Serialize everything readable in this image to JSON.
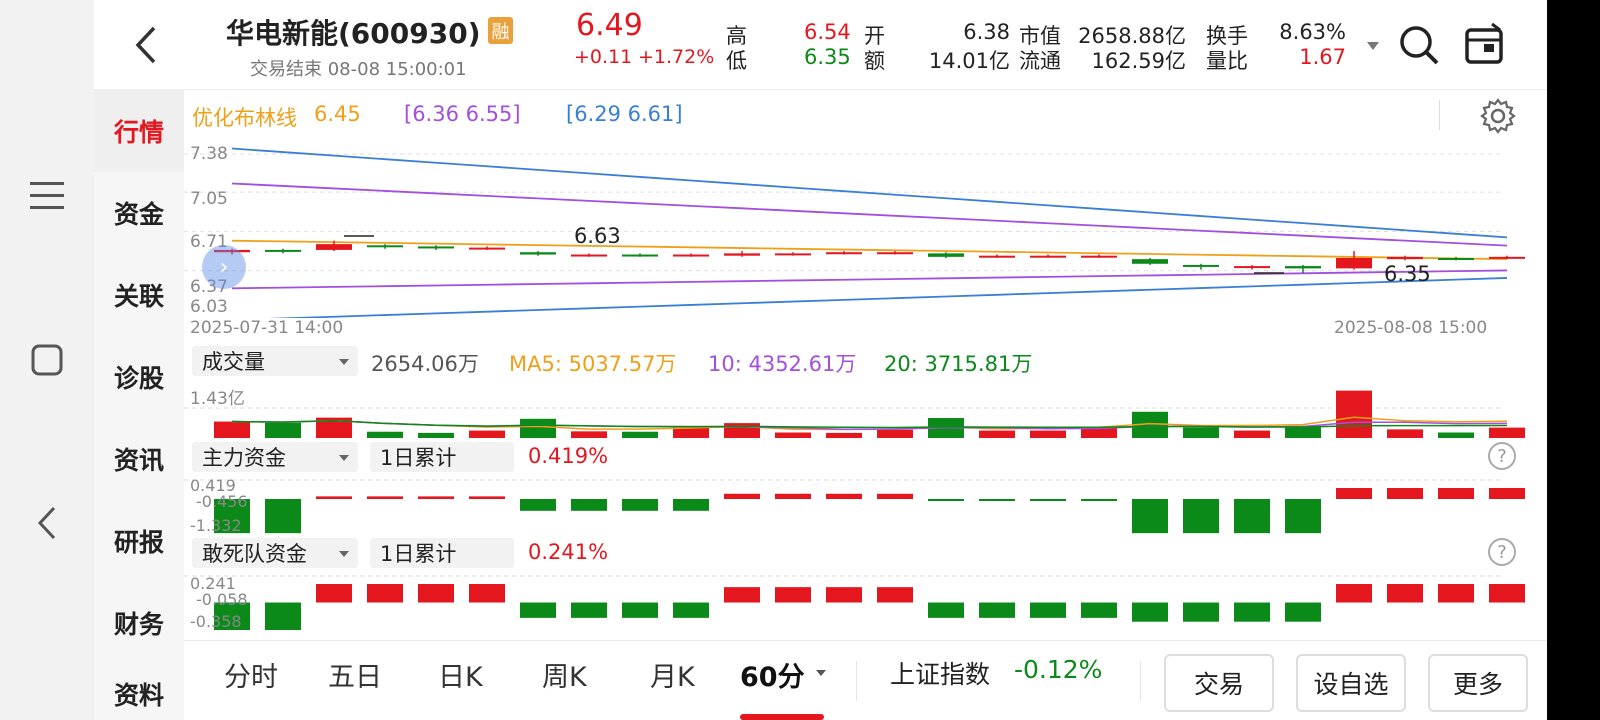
{
  "header": {
    "title": "华电新能(600930)",
    "rong_badge": "融",
    "status": "交易结束 08-08 15:00:01",
    "price": "6.49",
    "change": "+0.11",
    "change_pct": "+1.72%",
    "high_label": "高",
    "high": "6.54",
    "low_label": "低",
    "low": "6.35",
    "open_label": "开",
    "open": "6.38",
    "amount_label": "额",
    "amount": "14.01亿",
    "mktcap_label": "市值",
    "mktcap": "2658.88亿",
    "float_label": "流通",
    "float": "162.59亿",
    "turnover_label": "换手",
    "turnover": "8.63%",
    "volratio_label": "量比",
    "volratio": "1.67"
  },
  "tabs": [
    "行情",
    "资金",
    "关联",
    "诊股",
    "资讯",
    "研报",
    "财务",
    "资料"
  ],
  "chart": {
    "boll_label": "优化布林线",
    "boll_mid": "6.45",
    "boll_band1": "[6.36  6.55]",
    "boll_band2": "[6.29  6.61]",
    "y_ticks": [
      "7.38",
      "7.05",
      "6.71",
      "6.37",
      "6.03"
    ],
    "start_time": "2025-07-31 14:00",
    "end_time": "2025-08-08 15:00",
    "high_mark": "6.63",
    "low_mark": "6.35",
    "volume_selector": "成交量",
    "volume_value": "2654.06万",
    "ma5": "MA5: 5037.57万",
    "ma10": "10: 4352.61万",
    "ma20": "20: 3715.81万",
    "vol_max": "1.43亿",
    "main_selector": "主力资金",
    "main_period": "1日累计",
    "main_value": "0.419%",
    "main_ticks": [
      "0.419",
      "-0.456",
      "-1.332"
    ],
    "dare_selector": "敢死队资金",
    "dare_period": "1日累计",
    "dare_value": "0.241%",
    "dare_ticks": [
      "0.241",
      "-0.058",
      "-0.358"
    ],
    "help_icon": "?"
  },
  "chart_data": {
    "type": "candlestick",
    "x_range": [
      "2025-07-31 14:00",
      "2025-08-08 15:00"
    ],
    "candles": [
      {
        "o": 6.53,
        "c": 6.55,
        "h": 6.56,
        "l": 6.51
      },
      {
        "o": 6.55,
        "c": 6.54,
        "h": 6.56,
        "l": 6.52
      },
      {
        "o": 6.55,
        "c": 6.6,
        "h": 6.63,
        "l": 6.54
      },
      {
        "o": 6.59,
        "c": 6.58,
        "h": 6.6,
        "l": 6.56
      },
      {
        "o": 6.58,
        "c": 6.57,
        "h": 6.59,
        "l": 6.55
      },
      {
        "o": 6.56,
        "c": 6.57,
        "h": 6.58,
        "l": 6.55
      },
      {
        "o": 6.53,
        "c": 6.51,
        "h": 6.54,
        "l": 6.5
      },
      {
        "o": 6.5,
        "c": 6.51,
        "h": 6.52,
        "l": 6.49
      },
      {
        "o": 6.51,
        "c": 6.5,
        "h": 6.52,
        "l": 6.49
      },
      {
        "o": 6.5,
        "c": 6.51,
        "h": 6.52,
        "l": 6.49
      },
      {
        "o": 6.5,
        "c": 6.52,
        "h": 6.54,
        "l": 6.49
      },
      {
        "o": 6.51,
        "c": 6.52,
        "h": 6.53,
        "l": 6.5
      },
      {
        "o": 6.52,
        "c": 6.53,
        "h": 6.54,
        "l": 6.51
      },
      {
        "o": 6.52,
        "c": 6.53,
        "h": 6.54,
        "l": 6.51
      },
      {
        "o": 6.52,
        "c": 6.49,
        "h": 6.53,
        "l": 6.48
      },
      {
        "o": 6.49,
        "c": 6.5,
        "h": 6.51,
        "l": 6.48
      },
      {
        "o": 6.49,
        "c": 6.5,
        "h": 6.51,
        "l": 6.48
      },
      {
        "o": 6.49,
        "c": 6.5,
        "h": 6.51,
        "l": 6.48
      },
      {
        "o": 6.47,
        "c": 6.43,
        "h": 6.48,
        "l": 6.42
      },
      {
        "o": 6.42,
        "c": 6.41,
        "h": 6.43,
        "l": 6.38
      },
      {
        "o": 6.4,
        "c": 6.41,
        "h": 6.42,
        "l": 6.38
      },
      {
        "o": 6.41,
        "c": 6.39,
        "h": 6.42,
        "l": 6.35
      },
      {
        "o": 6.39,
        "c": 6.48,
        "h": 6.54,
        "l": 6.38
      },
      {
        "o": 6.47,
        "c": 6.49,
        "h": 6.5,
        "l": 6.46
      },
      {
        "o": 6.48,
        "c": 6.47,
        "h": 6.49,
        "l": 6.46
      },
      {
        "o": 6.48,
        "c": 6.49,
        "h": 6.5,
        "l": 6.47
      }
    ],
    "volume_wan": [
      4200,
      3900,
      5200,
      1600,
      1300,
      1900,
      4900,
      1700,
      1600,
      2700,
      3800,
      1400,
      1300,
      2100,
      5100,
      1900,
      1900,
      2700,
      6700,
      2700,
      1900,
      3100,
      12100,
      2200,
      1400,
      2654
    ],
    "main_fund": [
      -1.3,
      -1.3,
      0.1,
      0.1,
      0.1,
      0.1,
      -0.45,
      -0.45,
      -0.45,
      -0.45,
      0.2,
      0.2,
      0.2,
      0.2,
      -0.05,
      -0.05,
      -0.05,
      -0.05,
      -1.3,
      -1.3,
      -1.3,
      -1.3,
      0.419,
      0.419,
      0.419,
      0.419
    ],
    "dare_fund": [
      -0.358,
      -0.358,
      0.241,
      0.241,
      0.241,
      0.241,
      -0.2,
      -0.2,
      -0.2,
      -0.2,
      0.2,
      0.2,
      0.2,
      0.2,
      -0.2,
      -0.2,
      -0.2,
      -0.2,
      -0.25,
      -0.25,
      -0.25,
      -0.25,
      0.241,
      0.241,
      0.241,
      0.241
    ]
  },
  "bottom": {
    "periods": [
      "分时",
      "五日",
      "日K",
      "周K",
      "月K",
      "60分"
    ],
    "index_label": "上证指数",
    "index_value": "-0.12%",
    "trade_button": "交易",
    "watch_button": "设自选",
    "more_button": "更多"
  },
  "colors": {
    "up": "#e4171f",
    "down": "#0b8a19",
    "mid": "#f0a018",
    "band1": "#a24fe0",
    "band2": "#3a7fd6"
  }
}
